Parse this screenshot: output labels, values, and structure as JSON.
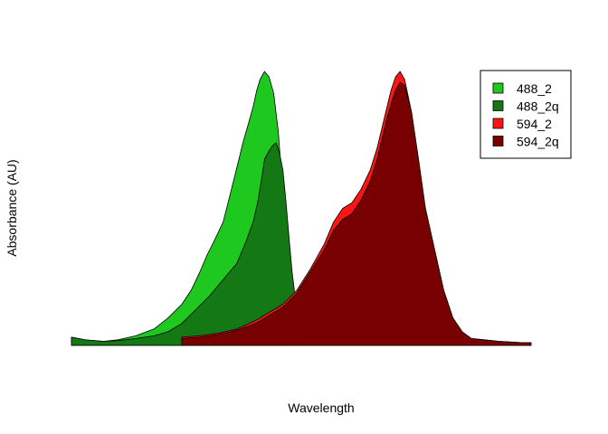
{
  "chart_data": {
    "type": "area",
    "title": "",
    "xlabel": "Wavelength",
    "ylabel": "Absorbance (AU)",
    "xlim": [
      0,
      100
    ],
    "ylim": [
      0,
      1
    ],
    "grid": false,
    "axes_visible": false,
    "legend_position": "top-right",
    "series": [
      {
        "name": "488_2",
        "color": "#1ec81e",
        "x": [
          0,
          3,
          7,
          10,
          14,
          18,
          21,
          24,
          26,
          28,
          29.5,
          31,
          33,
          34.5,
          36,
          37.3,
          38.5,
          39.5,
          40.3,
          41,
          42,
          43,
          44,
          45,
          46,
          47,
          47.8
        ],
        "y": [
          0.03,
          0.02,
          0.015,
          0.02,
          0.035,
          0.06,
          0.1,
          0.15,
          0.2,
          0.27,
          0.33,
          0.38,
          0.45,
          0.55,
          0.65,
          0.74,
          0.81,
          0.87,
          0.93,
          0.97,
          1.0,
          0.98,
          0.92,
          0.78,
          0.55,
          0.28,
          0.0
        ]
      },
      {
        "name": "488_2q",
        "color": "#147814",
        "x": [
          0,
          3,
          7,
          10,
          14,
          18,
          21,
          24,
          27,
          30,
          33,
          36,
          38,
          39.5,
          40.5,
          41.3,
          42,
          43,
          43.8,
          44.5,
          45.3,
          46,
          46.7,
          47.3,
          48,
          49,
          50
        ],
        "y": [
          0.03,
          0.02,
          0.015,
          0.017,
          0.025,
          0.035,
          0.05,
          0.08,
          0.13,
          0.18,
          0.24,
          0.3,
          0.38,
          0.45,
          0.52,
          0.6,
          0.68,
          0.71,
          0.73,
          0.74,
          0.7,
          0.64,
          0.52,
          0.4,
          0.27,
          0.13,
          0.0
        ]
      },
      {
        "name": "594_2",
        "color": "#ff1414",
        "x": [
          24,
          28,
          32,
          36,
          40,
          43,
          46,
          49,
          52,
          55,
          57,
          59,
          61,
          63,
          65,
          66.5,
          67.5,
          68.5,
          69.5,
          70.5,
          71.5,
          72.5,
          74,
          75.5,
          77,
          79,
          81,
          83,
          85,
          87,
          90,
          93,
          96,
          98,
          100
        ],
        "y": [
          0.03,
          0.035,
          0.045,
          0.06,
          0.09,
          0.12,
          0.15,
          0.2,
          0.28,
          0.37,
          0.45,
          0.5,
          0.52,
          0.57,
          0.64,
          0.72,
          0.79,
          0.86,
          0.93,
          0.98,
          1.0,
          0.97,
          0.85,
          0.68,
          0.5,
          0.35,
          0.2,
          0.1,
          0.05,
          0.025,
          0.02,
          0.015,
          0.012,
          0.01,
          0.01
        ]
      },
      {
        "name": "594_2q",
        "color": "#780000",
        "x": [
          24,
          28,
          32,
          36,
          40,
          43,
          46,
          49,
          52,
          55,
          57,
          59,
          61,
          63,
          65,
          66.5,
          67.5,
          68.5,
          69.5,
          70.5,
          71.5,
          72.5,
          74,
          75.5,
          77,
          79,
          81,
          83,
          85,
          87,
          90,
          93,
          96,
          98,
          100
        ],
        "y": [
          0.025,
          0.03,
          0.04,
          0.055,
          0.08,
          0.11,
          0.14,
          0.19,
          0.27,
          0.35,
          0.42,
          0.46,
          0.48,
          0.53,
          0.6,
          0.68,
          0.75,
          0.82,
          0.88,
          0.93,
          0.96,
          0.95,
          0.85,
          0.68,
          0.5,
          0.35,
          0.2,
          0.1,
          0.05,
          0.025,
          0.02,
          0.015,
          0.012,
          0.01,
          0.01
        ]
      }
    ]
  }
}
